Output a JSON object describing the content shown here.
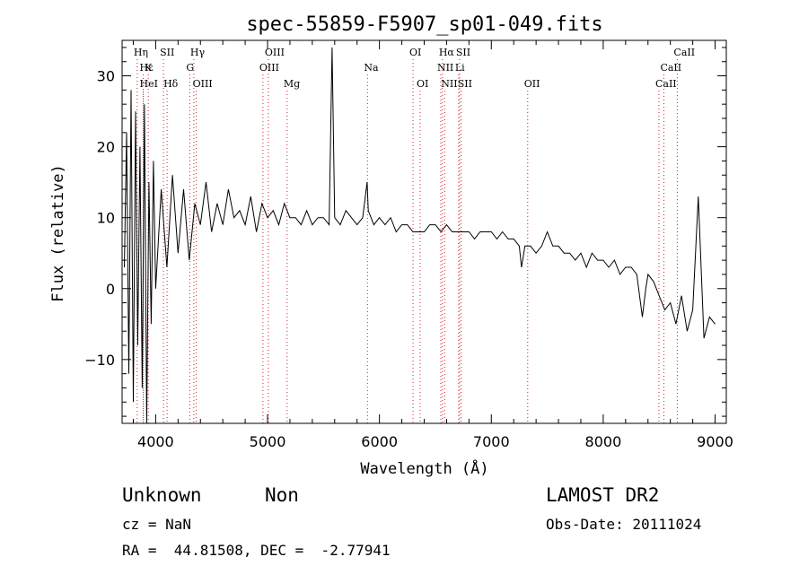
{
  "chart_data": {
    "type": "line",
    "title": "spec-55859-F5907_sp01-049.fits",
    "xlabel": "Wavelength (Å)",
    "ylabel": "Flux (relative)",
    "xlim": [
      3700,
      9100
    ],
    "ylim": [
      -19,
      35
    ],
    "xticks": [
      4000,
      5000,
      6000,
      7000,
      8000,
      9000
    ],
    "yticks": [
      -10,
      0,
      10,
      20,
      30
    ],
    "x": [
      3720,
      3740,
      3760,
      3780,
      3800,
      3820,
      3840,
      3860,
      3880,
      3900,
      3920,
      3940,
      3960,
      3980,
      4000,
      4050,
      4100,
      4150,
      4200,
      4250,
      4300,
      4350,
      4400,
      4450,
      4500,
      4550,
      4600,
      4650,
      4700,
      4750,
      4800,
      4850,
      4900,
      4950,
      5000,
      5050,
      5100,
      5150,
      5200,
      5250,
      5300,
      5350,
      5400,
      5450,
      5500,
      5550,
      5577,
      5600,
      5650,
      5700,
      5750,
      5800,
      5850,
      5890,
      5900,
      5950,
      6000,
      6050,
      6100,
      6150,
      6200,
      6250,
      6300,
      6350,
      6400,
      6450,
      6500,
      6550,
      6600,
      6650,
      6700,
      6750,
      6800,
      6850,
      6900,
      6950,
      7000,
      7050,
      7100,
      7150,
      7200,
      7250,
      7270,
      7300,
      7350,
      7400,
      7450,
      7500,
      7550,
      7600,
      7650,
      7700,
      7750,
      7800,
      7850,
      7900,
      7950,
      8000,
      8050,
      8100,
      8150,
      8200,
      8250,
      8300,
      8350,
      8380,
      8400,
      8450,
      8500,
      8550,
      8600,
      8650,
      8700,
      8750,
      8800,
      8850,
      8900,
      8950,
      9000
    ],
    "y": [
      3,
      22,
      -12,
      28,
      -16,
      25,
      -8,
      20,
      -14,
      26,
      -19,
      15,
      -5,
      18,
      0,
      14,
      3,
      16,
      5,
      14,
      4,
      12,
      9,
      15,
      8,
      12,
      9,
      14,
      10,
      11,
      9,
      13,
      8,
      12,
      10,
      11,
      9,
      12,
      10,
      10,
      9,
      11,
      9,
      10,
      10,
      9,
      34,
      10,
      9,
      11,
      10,
      9,
      10,
      15,
      11,
      9,
      10,
      9,
      10,
      8,
      9,
      9,
      8,
      8,
      8,
      9,
      9,
      8,
      9,
      8,
      8,
      8,
      8,
      7,
      8,
      8,
      8,
      7,
      8,
      7,
      7,
      6,
      3,
      6,
      6,
      5,
      6,
      8,
      6,
      6,
      5,
      5,
      4,
      5,
      3,
      5,
      4,
      4,
      3,
      4,
      2,
      3,
      3,
      2,
      -4,
      0,
      2,
      1,
      -1,
      -3,
      -2,
      -5,
      -1,
      -6,
      -3,
      13,
      -7,
      -4,
      -5
    ],
    "grid": false,
    "lines": [
      {
        "label": "Hη",
        "wavelength": 3835,
        "row": 1
      },
      {
        "label": "Hε",
        "wavelength": 3889,
        "row": 2
      },
      {
        "label": "HeI",
        "wavelength": 3889,
        "row": 3
      },
      {
        "label": "K",
        "wavelength": 3934,
        "row": 2
      },
      {
        "label": "SII",
        "wavelength": 4070,
        "row": 1
      },
      {
        "label": "Hδ",
        "wavelength": 4102,
        "row": 3
      },
      {
        "label": "Hγ",
        "wavelength": 4341,
        "row": 1
      },
      {
        "label": "G",
        "wavelength": 4305,
        "row": 2
      },
      {
        "label": "OIII",
        "wavelength": 4363,
        "row": 3
      },
      {
        "label": "OIII",
        "wavelength": 5007,
        "row": 1
      },
      {
        "label": "OIII",
        "wavelength": 4959,
        "row": 2
      },
      {
        "label": "Mg",
        "wavelength": 5175,
        "row": 3
      },
      {
        "label": "Na",
        "wavelength": 5893,
        "row": 2
      },
      {
        "label": "OI",
        "wavelength": 6300,
        "row": 1
      },
      {
        "label": "OI",
        "wavelength": 6364,
        "row": 3
      },
      {
        "label": "Hα",
        "wavelength": 6563,
        "row": 1
      },
      {
        "label": "SII",
        "wavelength": 6716,
        "row": 1
      },
      {
        "label": "NII",
        "wavelength": 6548,
        "row": 2
      },
      {
        "label": "Li",
        "wavelength": 6708,
        "row": 2
      },
      {
        "label": "NII",
        "wavelength": 6583,
        "row": 3
      },
      {
        "label": "SII",
        "wavelength": 6731,
        "row": 3
      },
      {
        "label": "OII",
        "wavelength": 7325,
        "row": 3
      },
      {
        "label": "CaII",
        "wavelength": 8662,
        "row": 1
      },
      {
        "label": "CaII",
        "wavelength": 8542,
        "row": 2
      },
      {
        "label": "CaII",
        "wavelength": 8498,
        "row": 3
      }
    ]
  },
  "footer": {
    "class": "Unknown",
    "subclass": "Non",
    "survey": "LAMOST DR2",
    "redshift": "cz = NaN",
    "obs_date": "Obs-Date: 20111024",
    "coords": "RA =  44.81508, DEC =  -2.77941"
  }
}
